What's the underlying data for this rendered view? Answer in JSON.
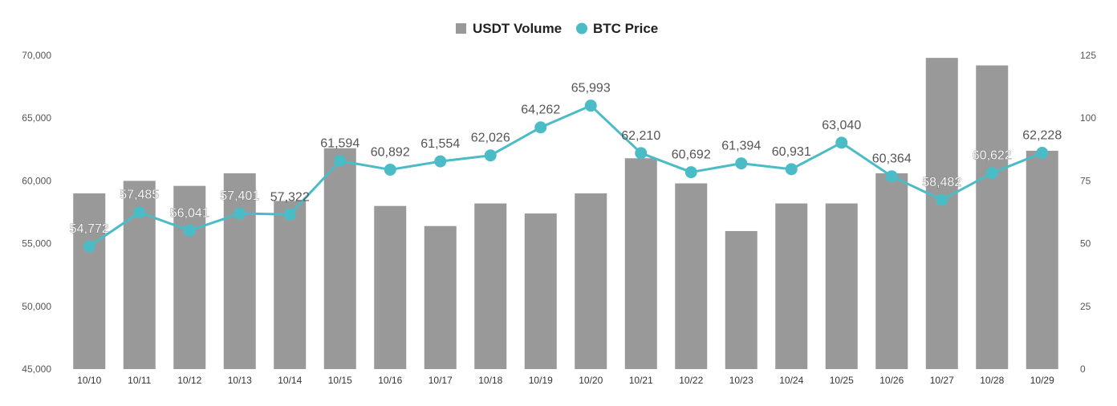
{
  "chart_data": {
    "type": "bar",
    "categories": [
      "10/10",
      "10/11",
      "10/12",
      "10/13",
      "10/14",
      "10/15",
      "10/16",
      "10/17",
      "10/18",
      "10/19",
      "10/20",
      "10/21",
      "10/22",
      "10/23",
      "10/24",
      "10/25",
      "10/26",
      "10/27",
      "10/28",
      "10/29"
    ],
    "series": [
      {
        "name": "USDT Volume",
        "type": "bar",
        "axis": "right",
        "color": "#999999",
        "values": [
          70,
          75,
          73,
          78,
          67,
          88,
          65,
          57,
          66,
          62,
          70,
          84,
          74,
          55,
          66,
          66,
          78,
          124,
          121,
          87
        ]
      },
      {
        "name": "BTC Price",
        "type": "line",
        "axis": "left",
        "color": "#4BBCC6",
        "values": [
          54772,
          57485,
          56041,
          57401,
          57322,
          61594,
          60892,
          61554,
          62026,
          64262,
          65993,
          62210,
          60692,
          61394,
          60931,
          63040,
          60364,
          58482,
          60622,
          62228
        ],
        "labels": [
          "54,772",
          "57,485",
          "56,041",
          "57,401",
          "57,322",
          "61,594",
          "60,892",
          "61,554",
          "62,026",
          "64,262",
          "65,993",
          "62,210",
          "60,692",
          "61,394",
          "60,931",
          "63,040",
          "60,364",
          "58,482",
          "60,622",
          "62,228"
        ]
      }
    ],
    "left_axis": {
      "ylim": [
        45000,
        70000
      ],
      "ticks": [
        45000,
        50000,
        55000,
        60000,
        65000,
        70000
      ],
      "tick_labels": [
        "45,000",
        "50,000",
        "55,000",
        "60,000",
        "65,000",
        "70,000"
      ]
    },
    "right_axis": {
      "ylim": [
        0,
        125
      ],
      "ticks": [
        0,
        25,
        50,
        75,
        100,
        125
      ],
      "tick_labels": [
        "0",
        "25",
        "50",
        "75",
        "100",
        "125"
      ]
    },
    "legend": {
      "position": "top-center"
    },
    "grid": false
  }
}
